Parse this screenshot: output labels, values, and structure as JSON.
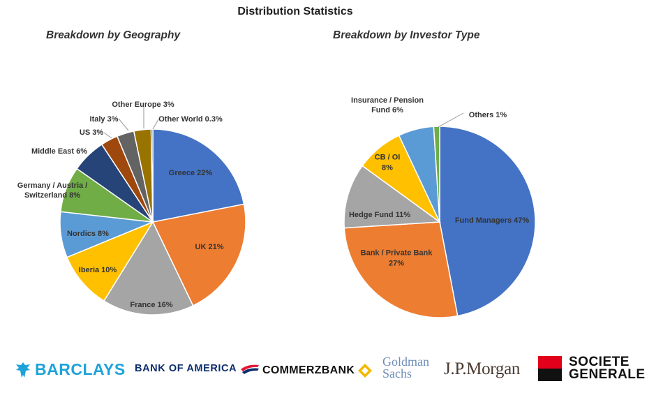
{
  "page_title": "Distribution Statistics",
  "chart_data": [
    {
      "type": "pie",
      "title": "Breakdown by Geography",
      "start_angle_deg": 0,
      "direction": "clockwise",
      "slices": [
        {
          "label": [
            "Greece 22%"
          ],
          "value": 22,
          "color": "#4472C4"
        },
        {
          "label": [
            "UK 21%"
          ],
          "value": 21,
          "color": "#ED7D31"
        },
        {
          "label": [
            "France 16%"
          ],
          "value": 16,
          "color": "#A5A5A5"
        },
        {
          "label": [
            "Iberia 10%"
          ],
          "value": 10,
          "color": "#FFC000"
        },
        {
          "label": [
            "Nordics 8%"
          ],
          "value": 8,
          "color": "#5B9BD5"
        },
        {
          "label": [
            "Germany / Austria /",
            "Switzerland 8%"
          ],
          "value": 8,
          "color": "#70AD47"
        },
        {
          "label": [
            "Middle East 6%"
          ],
          "value": 6,
          "color": "#264478"
        },
        {
          "label": [
            "US 3%"
          ],
          "value": 3,
          "color": "#9E480E"
        },
        {
          "label": [
            "Italy 3%"
          ],
          "value": 3,
          "color": "#636363"
        },
        {
          "label": [
            "Other Europe 3%"
          ],
          "value": 3,
          "color": "#997300"
        },
        {
          "label": [
            "Other World 0.3%"
          ],
          "value": 0.3,
          "color": "#255E91"
        }
      ]
    },
    {
      "type": "pie",
      "title": "Breakdown by Investor Type",
      "start_angle_deg": 0,
      "direction": "clockwise",
      "slices": [
        {
          "label": [
            "Fund Managers 47%"
          ],
          "value": 47,
          "color": "#4472C4"
        },
        {
          "label": [
            "Bank / Private Bank",
            "27%"
          ],
          "value": 27,
          "color": "#ED7D31"
        },
        {
          "label": [
            "Hedge Fund 11%"
          ],
          "value": 11,
          "color": "#A5A5A5"
        },
        {
          "label": [
            "CB / OI",
            "8%"
          ],
          "value": 8,
          "color": "#FFC000"
        },
        {
          "label": [
            "Insurance / Pension",
            "Fund 6%"
          ],
          "value": 6,
          "color": "#5B9BD5"
        },
        {
          "label": [
            "Others 1%"
          ],
          "value": 1,
          "color": "#70AD47"
        }
      ]
    }
  ],
  "logos": {
    "barclays": "BARCLAYS",
    "bank_of_america": "BANK OF AMERICA",
    "commerzbank": "COMMERZBANK",
    "goldman_line1": "Goldman",
    "goldman_line2": "Sachs",
    "jp_morgan": "J.P.Morgan",
    "socgen_line1": "SOCIETE",
    "socgen_line2": "GENERALE"
  }
}
